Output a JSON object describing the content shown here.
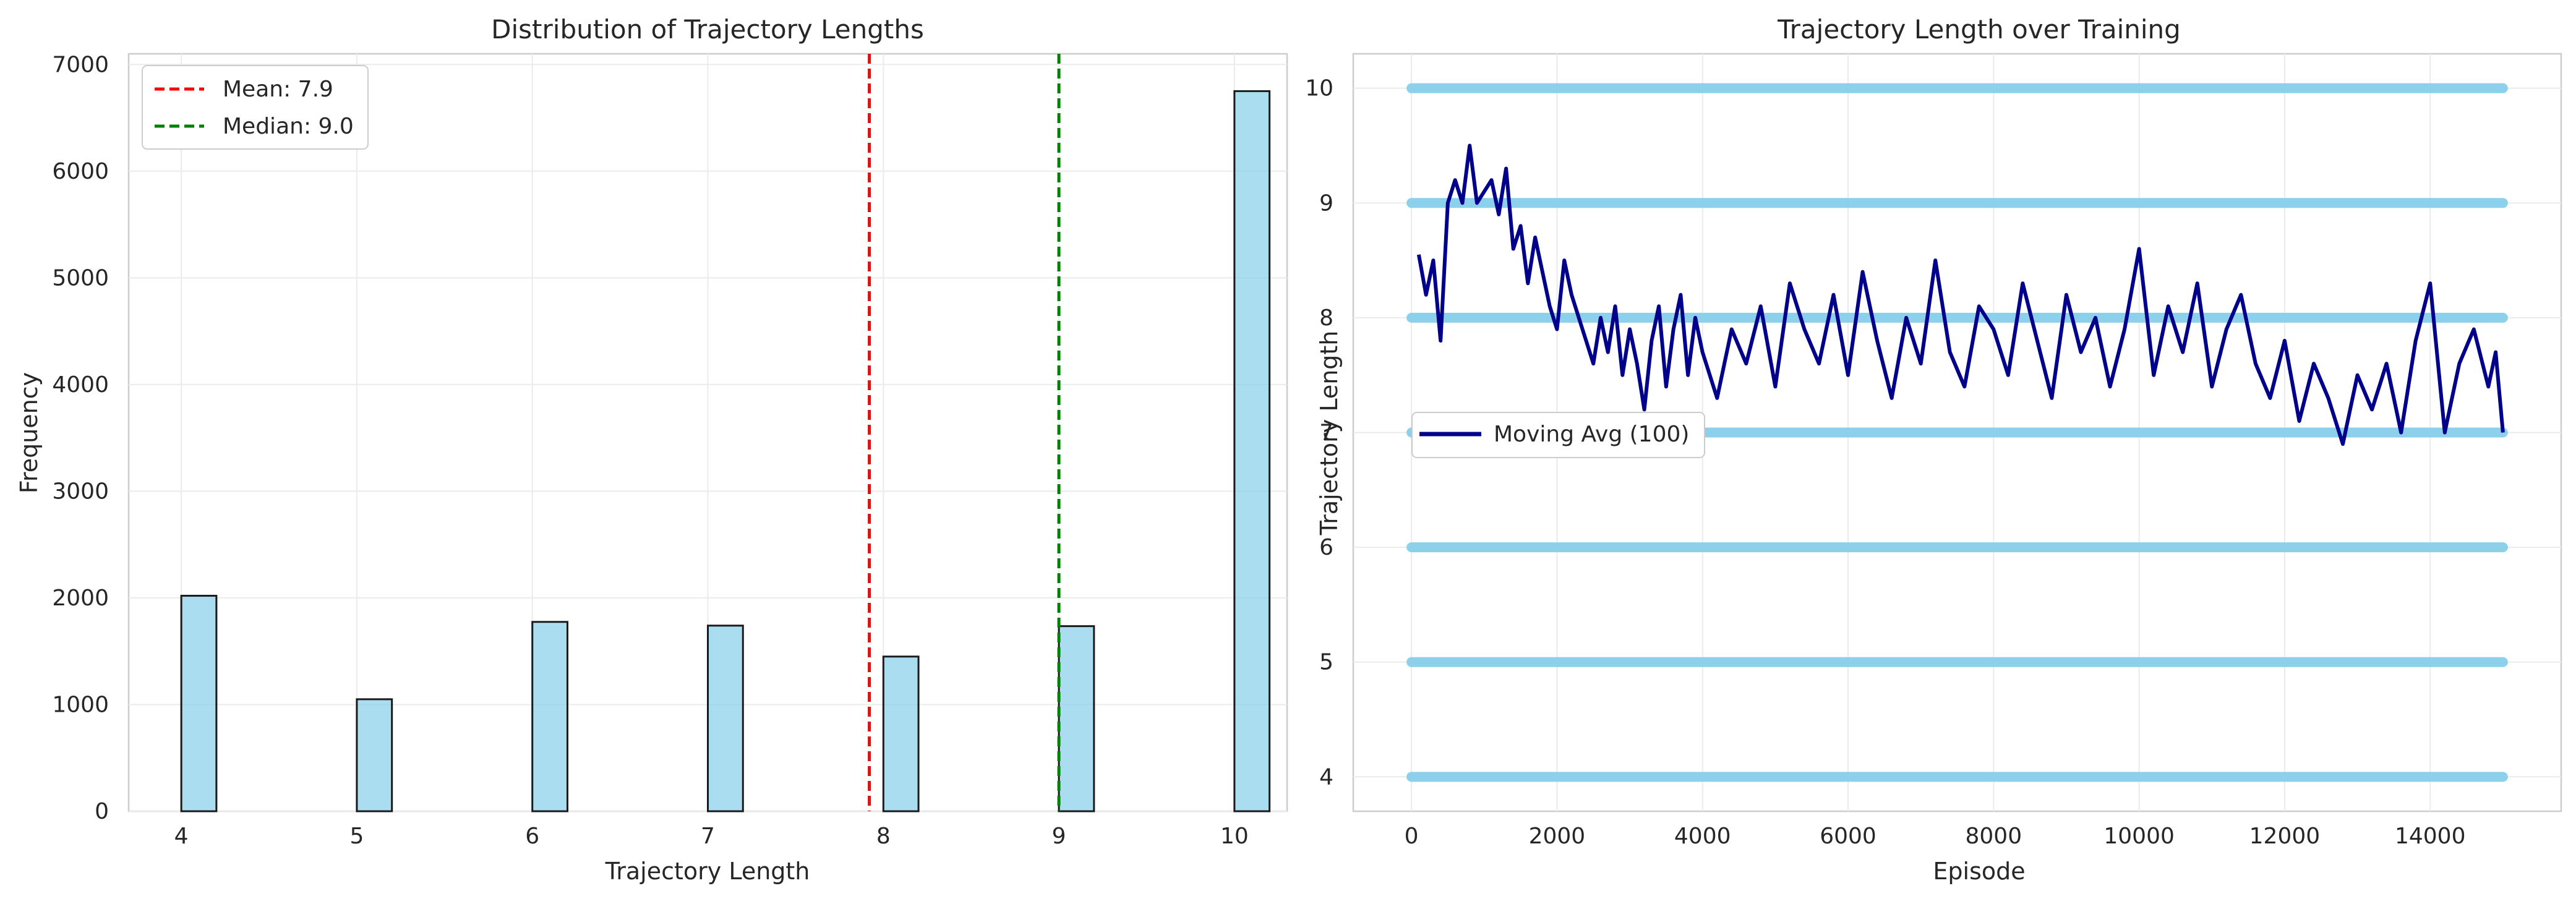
{
  "chart_data": [
    {
      "type": "bar",
      "title": "Distribution of Trajectory Lengths",
      "xlabel": "Trajectory Length",
      "ylabel": "Frequency",
      "categories": [
        4,
        5,
        6,
        7,
        8,
        9,
        10
      ],
      "values": [
        2020,
        1050,
        1775,
        1740,
        1450,
        1735,
        6750
      ],
      "xlim": [
        3.7,
        10.3
      ],
      "ylim": [
        0,
        7100
      ],
      "xticks": [
        4,
        5,
        6,
        7,
        8,
        9,
        10
      ],
      "yticks": [
        0,
        1000,
        2000,
        3000,
        4000,
        5000,
        6000,
        7000
      ],
      "bar_color": "#87CEEB",
      "edge_color": "#1a1a1a",
      "grid": true,
      "legend_position": "upper-left",
      "reference_lines": [
        {
          "label": "Mean: 7.9",
          "value": 7.92,
          "color": "#ff0000"
        },
        {
          "label": "Median: 9.0",
          "value": 9.0,
          "color": "#008000"
        }
      ]
    },
    {
      "type": "scatter",
      "title": "Trajectory Length over Training",
      "xlabel": "Episode",
      "ylabel": "Trajectory Length",
      "xlim": [
        -800,
        15800
      ],
      "ylim": [
        3.7,
        10.3
      ],
      "xticks": [
        0,
        2000,
        4000,
        6000,
        8000,
        10000,
        12000,
        14000
      ],
      "yticks": [
        4,
        5,
        6,
        7,
        8,
        9,
        10
      ],
      "grid": true,
      "legend_position": "center-left",
      "scatter": {
        "color": "#87CEEB",
        "levels": [
          4,
          5,
          6,
          7,
          8,
          9,
          10
        ],
        "x_range": [
          0,
          15000
        ]
      },
      "series": [
        {
          "name": "Moving Avg (100)",
          "color": "#00008B",
          "x": [
            100,
            200,
            300,
            400,
            500,
            600,
            700,
            800,
            900,
            1000,
            1100,
            1200,
            1300,
            1400,
            1500,
            1600,
            1700,
            1800,
            1900,
            2000,
            2100,
            2200,
            2300,
            2400,
            2500,
            2600,
            2700,
            2800,
            2900,
            3000,
            3100,
            3200,
            3300,
            3400,
            3500,
            3600,
            3700,
            3800,
            3900,
            4000,
            4200,
            4400,
            4600,
            4800,
            5000,
            5200,
            5400,
            5600,
            5800,
            6000,
            6200,
            6400,
            6600,
            6800,
            7000,
            7200,
            7400,
            7600,
            7800,
            8000,
            8200,
            8400,
            8600,
            8800,
            9000,
            9200,
            9400,
            9600,
            9800,
            10000,
            10200,
            10400,
            10600,
            10800,
            11000,
            11200,
            11400,
            11600,
            11800,
            12000,
            12200,
            12400,
            12600,
            12800,
            13000,
            13200,
            13400,
            13600,
            13800,
            14000,
            14200,
            14400,
            14600,
            14800,
            14900,
            15000
          ],
          "values": [
            8.55,
            8.2,
            8.5,
            7.8,
            9.0,
            9.2,
            9.0,
            9.5,
            9.0,
            9.1,
            9.2,
            8.9,
            9.3,
            8.6,
            8.8,
            8.3,
            8.7,
            8.4,
            8.1,
            7.9,
            8.5,
            8.2,
            8.0,
            7.8,
            7.6,
            8.0,
            7.7,
            8.1,
            7.5,
            7.9,
            7.6,
            7.2,
            7.8,
            8.1,
            7.4,
            7.9,
            8.2,
            7.5,
            8.0,
            7.7,
            7.3,
            7.9,
            7.6,
            8.1,
            7.4,
            8.3,
            7.9,
            7.6,
            8.2,
            7.5,
            8.4,
            7.8,
            7.3,
            8.0,
            7.6,
            8.5,
            7.7,
            7.4,
            8.1,
            7.9,
            7.5,
            8.3,
            7.8,
            7.3,
            8.2,
            7.7,
            8.0,
            7.4,
            7.9,
            8.6,
            7.5,
            8.1,
            7.7,
            8.3,
            7.4,
            7.9,
            8.2,
            7.6,
            7.3,
            7.8,
            7.1,
            7.6,
            7.3,
            6.9,
            7.5,
            7.2,
            7.6,
            7.0,
            7.8,
            8.3,
            7.0,
            7.6,
            7.9,
            7.4,
            7.7,
            7.0
          ]
        }
      ]
    }
  ]
}
